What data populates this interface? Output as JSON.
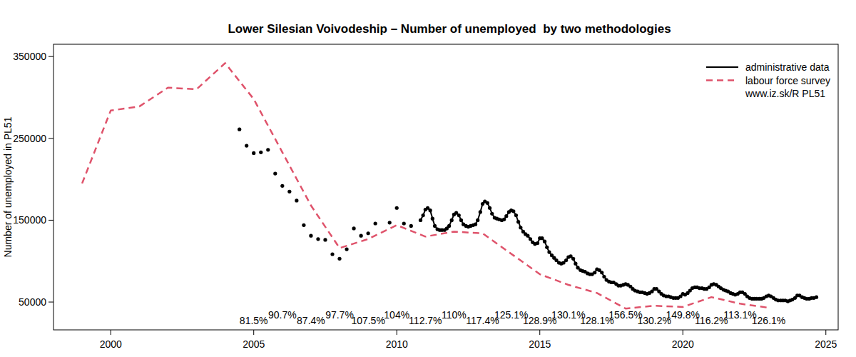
{
  "chart_data": {
    "type": "line",
    "title": "Lower Silesian Voivodeship – Number of unemployed  by two methodologies",
    "y_label": "Number of unemployed in PL51",
    "source": "www.iz.sk/R PL51",
    "legend": "top-right",
    "grid": false,
    "xlim": [
      1998.0,
      2025.43
    ],
    "xticks": [
      2000,
      2005,
      2010,
      2015,
      2020,
      2025
    ],
    "ylim": [
      16000,
      365000
    ],
    "yticks": [
      50000,
      150000,
      250000,
      350000
    ],
    "series": [
      {
        "name": "administrative data",
        "color": "#000000",
        "marker": "circle",
        "line_style": "solid",
        "x": [
          2004.5,
          null,
          2004.75,
          null,
          2005.0,
          null,
          2005.25,
          null,
          2005.5,
          null,
          2005.75,
          null,
          2006.0,
          null,
          2006.25,
          null,
          2006.5,
          null,
          2006.75,
          null,
          2007.0,
          null,
          2007.25,
          null,
          2007.5,
          null,
          2007.75,
          null,
          2008.0,
          null,
          2008.25,
          null,
          2008.5,
          null,
          2008.75,
          null,
          2009.0,
          null,
          2009.25,
          null,
          2009.75,
          null,
          2010.0,
          null,
          2010.25,
          null,
          2010.5,
          null,
          2010.83,
          2010.92,
          2011.0,
          2011.08,
          2011.17,
          2011.25,
          2011.33,
          2011.42,
          2011.5,
          2011.58,
          2011.67,
          2011.75,
          2011.83,
          2011.92,
          2012.0,
          2012.08,
          2012.17,
          2012.25,
          2012.33,
          2012.42,
          2012.5,
          2012.58,
          2012.67,
          2012.75,
          2012.83,
          2012.92,
          2013.0,
          2013.08,
          2013.17,
          2013.25,
          2013.33,
          2013.42,
          2013.5,
          2013.58,
          2013.67,
          2013.75,
          2013.83,
          2013.92,
          2014.0,
          2014.08,
          2014.17,
          2014.25,
          2014.33,
          2014.42,
          2014.5,
          2014.58,
          2014.67,
          2014.75,
          2014.83,
          2014.92,
          2015.0,
          2015.08,
          2015.17,
          2015.25,
          2015.33,
          2015.42,
          2015.5,
          2015.58,
          2015.67,
          2015.75,
          2015.83,
          2015.92,
          2016.0,
          2016.08,
          2016.17,
          2016.25,
          2016.33,
          2016.42,
          2016.5,
          2016.58,
          2016.67,
          2016.75,
          2016.83,
          2016.92,
          2017.0,
          2017.08,
          2017.17,
          2017.25,
          2017.33,
          2017.42,
          2017.5,
          2017.58,
          2017.67,
          2017.75,
          2017.83,
          2017.92,
          2018.0,
          2018.08,
          2018.17,
          2018.25,
          2018.33,
          2018.42,
          2018.5,
          2018.58,
          2018.67,
          2018.75,
          2018.83,
          2018.92,
          2019.0,
          2019.08,
          2019.17,
          2019.25,
          2019.33,
          2019.42,
          2019.5,
          2019.58,
          2019.67,
          2019.75,
          2019.83,
          2019.92,
          2020.0,
          2020.08,
          2020.17,
          2020.25,
          2020.33,
          2020.42,
          2020.5,
          2020.58,
          2020.67,
          2020.75,
          2020.83,
          2020.92,
          2021.0,
          2021.08,
          2021.17,
          2021.25,
          2021.33,
          2021.42,
          2021.5,
          2021.58,
          2021.67,
          2021.75,
          2021.83,
          2021.92,
          2022.0,
          2022.08,
          2022.17,
          2022.25,
          2022.33,
          2022.42,
          2022.5,
          2022.58,
          2022.67,
          2022.75,
          2022.83,
          2022.92,
          2023.0,
          2023.08,
          2023.17,
          2023.25,
          2023.33,
          2023.42,
          2023.5,
          2023.58,
          2023.67,
          2023.75,
          2023.83,
          2023.92,
          2024.0,
          2024.08,
          2024.17,
          2024.25,
          2024.33,
          2024.42,
          2024.5,
          2024.58,
          2024.67
        ],
        "values": [
          261000,
          null,
          241000,
          null,
          232000,
          null,
          233000,
          null,
          236000,
          null,
          207000,
          null,
          192000,
          null,
          185000,
          null,
          174000,
          null,
          144000,
          null,
          131000,
          null,
          127000,
          null,
          126000,
          null,
          108500,
          null,
          103000,
          null,
          114500,
          null,
          140000,
          null,
          131000,
          null,
          134000,
          null,
          146000,
          null,
          147000,
          null,
          165000,
          null,
          146000,
          null,
          143000,
          null,
          150000,
          156000,
          163000,
          165000,
          162000,
          152000,
          143000,
          139000,
          138000,
          138000,
          138000,
          140000,
          143000,
          150000,
          157000,
          159000,
          156000,
          150000,
          145000,
          143000,
          142000,
          143000,
          144000,
          145000,
          150000,
          160000,
          170000,
          173000,
          171000,
          165000,
          158000,
          153000,
          152000,
          151000,
          150000,
          151000,
          155000,
          160000,
          162000,
          161000,
          156000,
          148000,
          141000,
          136000,
          133000,
          131000,
          127000,
          123000,
          121000,
          122000,
          128000,
          128000,
          124000,
          117000,
          111000,
          107000,
          104000,
          101000,
          98000,
          97000,
          98000,
          101000,
          105000,
          106000,
          103000,
          97000,
          92000,
          89000,
          88000,
          87000,
          85000,
          84000,
          84000,
          86000,
          90000,
          89000,
          86000,
          81000,
          77000,
          75000,
          74000,
          74000,
          72000,
          70000,
          70000,
          71000,
          72000,
          71000,
          69000,
          66000,
          64000,
          63000,
          62000,
          62000,
          61000,
          60000,
          61000,
          63000,
          66000,
          66000,
          63000,
          60000,
          58000,
          57000,
          57000,
          56000,
          55000,
          55000,
          55000,
          57000,
          60000,
          59000,
          61000,
          64000,
          67000,
          68000,
          68000,
          67000,
          67000,
          66000,
          66000,
          68000,
          71000,
          72000,
          71000,
          69000,
          67000,
          65000,
          64000,
          63000,
          61000,
          60000,
          59000,
          60000,
          62000,
          62000,
          60000,
          57000,
          55000,
          54000,
          54000,
          54000,
          54000,
          54000,
          55000,
          57000,
          58000,
          57000,
          55000,
          53000,
          52000,
          52000,
          52000,
          52000,
          51000,
          52000,
          53000,
          55000,
          58000,
          58000,
          56000,
          55000,
          54000,
          54000,
          55000,
          55000,
          56000
        ]
      },
      {
        "name": "labour force survey",
        "color": "#df536b",
        "marker": "none",
        "line_style": "dashed",
        "x": [
          1999,
          2000,
          2001,
          2002,
          2003,
          2004,
          2005,
          2006,
          2007,
          2008,
          2009,
          2010,
          2011,
          2012,
          2013,
          2014,
          2015,
          2016,
          2017,
          2018,
          2019,
          2020,
          2021,
          2022,
          2023
        ],
        "values": [
          195000,
          284000,
          289000,
          312000,
          310000,
          342000,
          298000,
          233000,
          168000,
          116000,
          127000,
          144000,
          130000,
          136000,
          134000,
          109000,
          84000,
          71000,
          61000,
          42000,
          45500,
          44000,
          56000,
          48000,
          43000
        ]
      }
    ],
    "annotations": [
      {
        "x": 2005,
        "text": "81.5%"
      },
      {
        "x": 2006,
        "text": "90.7%"
      },
      {
        "x": 2007,
        "text": "87.4%"
      },
      {
        "x": 2008,
        "text": "97.7%"
      },
      {
        "x": 2009,
        "text": "107.5%"
      },
      {
        "x": 2010,
        "text": "104%"
      },
      {
        "x": 2011,
        "text": "112.7%"
      },
      {
        "x": 2012,
        "text": "110%"
      },
      {
        "x": 2013,
        "text": "117.4%"
      },
      {
        "x": 2014,
        "text": "125.1%"
      },
      {
        "x": 2015,
        "text": "128.9%"
      },
      {
        "x": 2016,
        "text": "130.1%"
      },
      {
        "x": 2017,
        "text": "128.1%"
      },
      {
        "x": 2018,
        "text": "156.5%"
      },
      {
        "x": 2019,
        "text": "130.2%"
      },
      {
        "x": 2020,
        "text": "149.8%"
      },
      {
        "x": 2021,
        "text": "116.2%"
      },
      {
        "x": 2022,
        "text": "113.1%"
      },
      {
        "x": 2023,
        "text": "126.1%"
      }
    ]
  }
}
